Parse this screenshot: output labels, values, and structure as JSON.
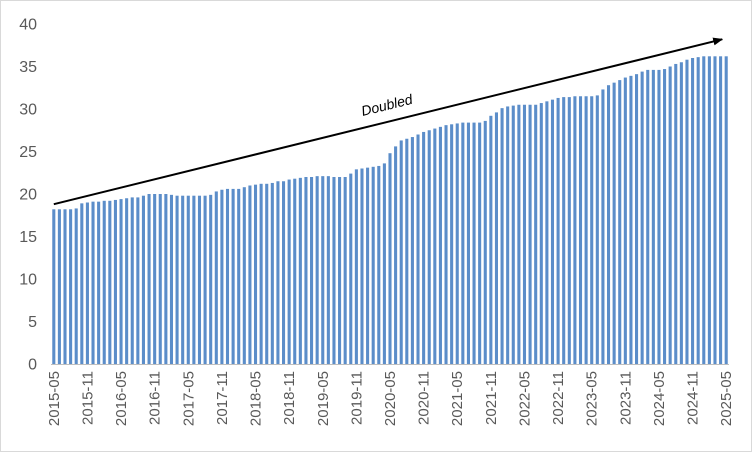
{
  "chart_data": {
    "type": "bar",
    "title": "",
    "xlabel": "",
    "ylabel": "",
    "ylim": [
      0,
      40
    ],
    "yticks": [
      0,
      5,
      10,
      15,
      20,
      25,
      30,
      35,
      40
    ],
    "grid": false,
    "legend": "none",
    "series_color": "#5b8dc9",
    "x_tick_labels": [
      "2015-05",
      "2015-11",
      "2016-05",
      "2016-11",
      "2017-05",
      "2017-11",
      "2018-05",
      "2018-11",
      "2019-05",
      "2019-11",
      "2020-05",
      "2020-11",
      "2021-05",
      "2021-11",
      "2022-05",
      "2022-11",
      "2023-05",
      "2023-11",
      "2024-05",
      "2024-11",
      "2025-05"
    ],
    "categories": [
      "2015-05",
      "2015-06",
      "2015-07",
      "2015-08",
      "2015-09",
      "2015-10",
      "2015-11",
      "2015-12",
      "2016-01",
      "2016-02",
      "2016-03",
      "2016-04",
      "2016-05",
      "2016-06",
      "2016-07",
      "2016-08",
      "2016-09",
      "2016-10",
      "2016-11",
      "2016-12",
      "2017-01",
      "2017-02",
      "2017-03",
      "2017-04",
      "2017-05",
      "2017-06",
      "2017-07",
      "2017-08",
      "2017-09",
      "2017-10",
      "2017-11",
      "2017-12",
      "2018-01",
      "2018-02",
      "2018-03",
      "2018-04",
      "2018-05",
      "2018-06",
      "2018-07",
      "2018-08",
      "2018-09",
      "2018-10",
      "2018-11",
      "2018-12",
      "2019-01",
      "2019-02",
      "2019-03",
      "2019-04",
      "2019-05",
      "2019-06",
      "2019-07",
      "2019-08",
      "2019-09",
      "2019-10",
      "2019-11",
      "2019-12",
      "2020-01",
      "2020-02",
      "2020-03",
      "2020-04",
      "2020-05",
      "2020-06",
      "2020-07",
      "2020-08",
      "2020-09",
      "2020-10",
      "2020-11",
      "2020-12",
      "2021-01",
      "2021-02",
      "2021-03",
      "2021-04",
      "2021-05",
      "2021-06",
      "2021-07",
      "2021-08",
      "2021-09",
      "2021-10",
      "2021-11",
      "2021-12",
      "2022-01",
      "2022-02",
      "2022-03",
      "2022-04",
      "2022-05",
      "2022-06",
      "2022-07",
      "2022-08",
      "2022-09",
      "2022-10",
      "2022-11",
      "2022-12",
      "2023-01",
      "2023-02",
      "2023-03",
      "2023-04",
      "2023-05",
      "2023-06",
      "2023-07",
      "2023-08",
      "2023-09",
      "2023-10",
      "2023-11",
      "2023-12",
      "2024-01",
      "2024-02",
      "2024-03",
      "2024-04",
      "2024-05",
      "2024-06",
      "2024-07",
      "2024-08",
      "2024-09",
      "2024-10",
      "2024-11",
      "2024-12",
      "2025-01",
      "2025-02",
      "2025-03",
      "2025-04",
      "2025-05"
    ],
    "values": [
      18.2,
      18.2,
      18.2,
      18.2,
      18.3,
      18.9,
      19.0,
      19.1,
      19.1,
      19.2,
      19.2,
      19.3,
      19.4,
      19.5,
      19.6,
      19.6,
      19.8,
      20.0,
      20.0,
      20.0,
      20.0,
      19.9,
      19.8,
      19.8,
      19.8,
      19.8,
      19.8,
      19.8,
      19.9,
      20.3,
      20.5,
      20.6,
      20.6,
      20.6,
      20.8,
      21.0,
      21.1,
      21.2,
      21.2,
      21.3,
      21.5,
      21.5,
      21.7,
      21.8,
      21.9,
      22.0,
      22.0,
      22.1,
      22.1,
      22.1,
      22.0,
      22.0,
      22.0,
      22.4,
      22.9,
      23.0,
      23.1,
      23.2,
      23.3,
      23.6,
      24.8,
      25.6,
      26.3,
      26.5,
      26.7,
      27.0,
      27.3,
      27.5,
      27.7,
      27.9,
      28.1,
      28.2,
      28.3,
      28.4,
      28.4,
      28.4,
      28.4,
      28.6,
      29.2,
      29.6,
      30.1,
      30.3,
      30.4,
      30.5,
      30.5,
      30.5,
      30.5,
      30.7,
      30.9,
      31.1,
      31.3,
      31.4,
      31.4,
      31.5,
      31.5,
      31.5,
      31.5,
      31.6,
      32.3,
      32.8,
      33.1,
      33.4,
      33.7,
      33.9,
      34.1,
      34.4,
      34.6,
      34.6,
      34.6,
      34.7,
      35.0,
      35.3,
      35.5,
      35.8,
      36.0,
      36.1,
      36.2,
      36.2,
      36.2,
      36.2,
      36.2
    ],
    "annotations": [
      {
        "text": "Doubled",
        "arrow_from": {
          "x": "2015-05",
          "y": 18.8
        },
        "arrow_to": {
          "x": "2025-05",
          "y": 38.2
        }
      }
    ]
  }
}
